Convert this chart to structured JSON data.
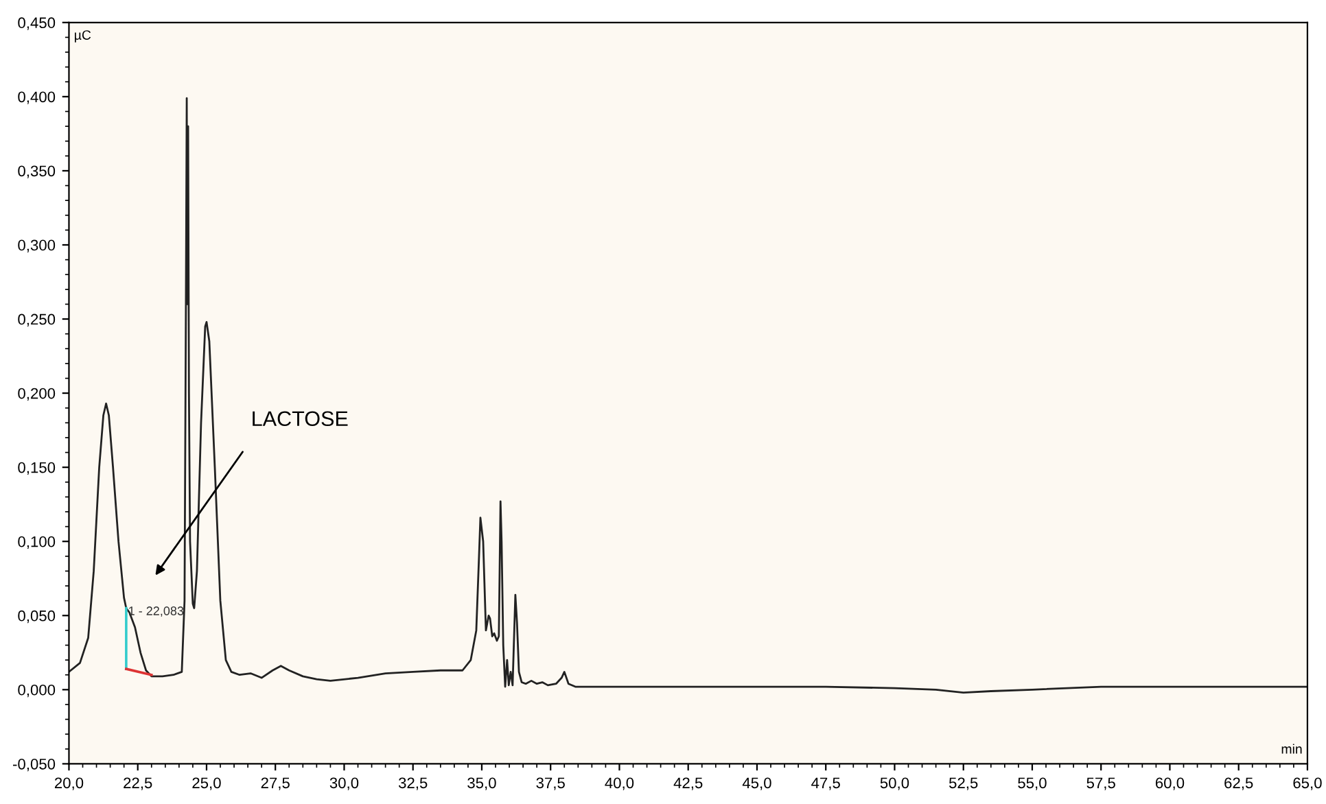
{
  "chart_data": {
    "type": "line",
    "xlabel": "min",
    "ylabel": "µC",
    "xlim": [
      20.0,
      65.0
    ],
    "xticks": [
      {
        "value": 20.0,
        "label": "20,0"
      },
      {
        "value": 22.5,
        "label": "22,5"
      },
      {
        "value": 25.0,
        "label": "25,0"
      },
      {
        "value": 27.5,
        "label": "27,5"
      },
      {
        "value": 30.0,
        "label": "30,0"
      },
      {
        "value": 32.5,
        "label": "32,5"
      },
      {
        "value": 35.0,
        "label": "35,0"
      },
      {
        "value": 37.5,
        "label": "37,5"
      },
      {
        "value": 40.0,
        "label": "40,0"
      },
      {
        "value": 42.5,
        "label": "42,5"
      },
      {
        "value": 45.0,
        "label": "45,0"
      },
      {
        "value": 47.5,
        "label": "47,5"
      },
      {
        "value": 50.0,
        "label": "50,0"
      },
      {
        "value": 52.5,
        "label": "52,5"
      },
      {
        "value": 55.0,
        "label": "55,0"
      },
      {
        "value": 57.5,
        "label": "57,5"
      },
      {
        "value": 60.0,
        "label": "60,0"
      },
      {
        "value": 62.5,
        "label": "62,5"
      },
      {
        "value": 65.0,
        "label": "65,0"
      }
    ],
    "ylim": [
      -0.05,
      0.45
    ],
    "yticks": [
      {
        "value": -0.05,
        "label": "-0,050"
      },
      {
        "value": 0.0,
        "label": "0,000"
      },
      {
        "value": 0.05,
        "label": "0,050"
      },
      {
        "value": 0.1,
        "label": "0,100"
      },
      {
        "value": 0.15,
        "label": "0,150"
      },
      {
        "value": 0.2,
        "label": "0,200"
      },
      {
        "value": 0.25,
        "label": "0,250"
      },
      {
        "value": 0.3,
        "label": "0,300"
      },
      {
        "value": 0.35,
        "label": "0,350"
      },
      {
        "value": 0.4,
        "label": "0,400"
      },
      {
        "value": 0.45,
        "label": "0,450"
      }
    ],
    "grid": false,
    "legend": false,
    "marker": "none",
    "line_style": "solid",
    "series": [
      {
        "color": "#222222",
        "x": [
          20.0,
          20.4,
          20.7,
          20.9,
          21.1,
          21.25,
          21.35,
          21.45,
          21.6,
          21.8,
          22.0,
          22.08,
          22.2,
          22.4,
          22.6,
          22.8,
          23.0,
          23.4,
          23.8,
          24.1,
          24.2,
          24.25,
          24.28,
          24.3,
          24.33,
          24.36,
          24.4,
          24.5,
          24.55,
          24.65,
          24.8,
          24.95,
          25.0,
          25.1,
          25.3,
          25.5,
          25.7,
          25.9,
          26.2,
          26.6,
          27.0,
          27.4,
          27.7,
          28.0,
          28.5,
          29.0,
          29.5,
          30.5,
          31.5,
          32.5,
          33.5,
          34.3,
          34.6,
          34.8,
          34.9,
          34.95,
          35.05,
          35.15,
          35.25,
          35.3,
          35.38,
          35.45,
          35.55,
          35.62,
          35.68,
          35.72,
          35.78,
          35.85,
          35.92,
          35.98,
          36.05,
          36.12,
          36.22,
          36.28,
          36.35,
          36.45,
          36.6,
          36.8,
          37.0,
          37.2,
          37.4,
          37.7,
          37.9,
          38.0,
          38.15,
          38.4,
          39.0,
          40.0,
          42.5,
          45.0,
          47.5,
          50.0,
          51.5,
          52.5,
          53.5,
          55.0,
          57.5,
          60.0,
          62.5,
          65.0
        ],
        "values": [
          0.012,
          0.018,
          0.035,
          0.08,
          0.15,
          0.185,
          0.193,
          0.185,
          0.15,
          0.1,
          0.062,
          0.055,
          0.052,
          0.042,
          0.025,
          0.013,
          0.009,
          0.009,
          0.01,
          0.012,
          0.06,
          0.26,
          0.399,
          0.26,
          0.38,
          0.2,
          0.1,
          0.058,
          0.055,
          0.08,
          0.18,
          0.245,
          0.248,
          0.235,
          0.15,
          0.06,
          0.02,
          0.012,
          0.01,
          0.011,
          0.008,
          0.013,
          0.016,
          0.013,
          0.009,
          0.007,
          0.006,
          0.008,
          0.011,
          0.012,
          0.013,
          0.013,
          0.02,
          0.04,
          0.09,
          0.116,
          0.1,
          0.04,
          0.05,
          0.048,
          0.036,
          0.038,
          0.033,
          0.036,
          0.127,
          0.1,
          0.03,
          0.002,
          0.02,
          0.003,
          0.012,
          0.003,
          0.064,
          0.045,
          0.012,
          0.005,
          0.004,
          0.006,
          0.004,
          0.005,
          0.003,
          0.004,
          0.008,
          0.012,
          0.004,
          0.002,
          0.002,
          0.002,
          0.002,
          0.002,
          0.002,
          0.001,
          0.0,
          -0.002,
          -0.001,
          0.0,
          0.002,
          0.002,
          0.002,
          0.002
        ]
      },
      {
        "color": "#33cccc",
        "x": [
          22.08,
          22.08
        ],
        "values": [
          0.055,
          0.014
        ]
      },
      {
        "color": "#dd3333",
        "x": [
          22.08,
          23.0
        ],
        "values": [
          0.014,
          0.01
        ]
      }
    ],
    "annotations": [
      "LACTOSE",
      {
        "text": "1 - 22,083",
        "x": 22.08,
        "y": 0.055
      }
    ]
  }
}
